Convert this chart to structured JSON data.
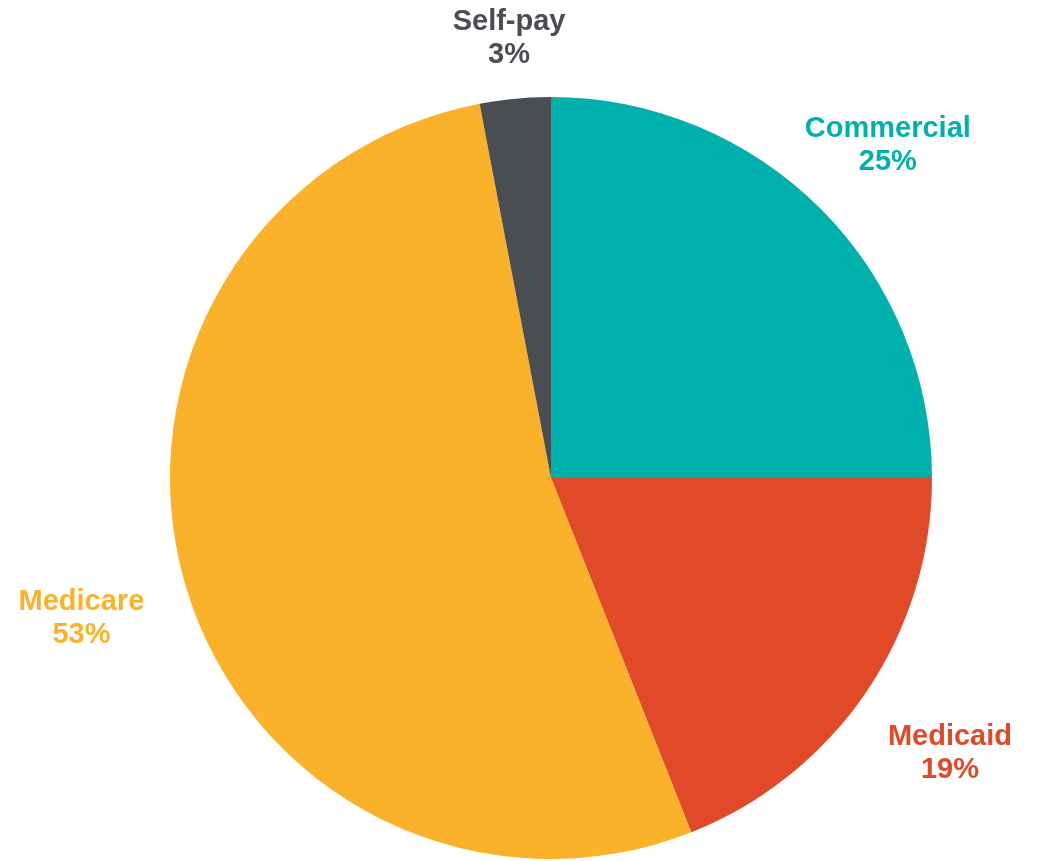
{
  "chart_data": {
    "type": "pie",
    "categories": [
      "Commercial",
      "Medicaid",
      "Medicare",
      "Self-pay"
    ],
    "values": [
      25,
      19,
      53,
      3
    ],
    "colors": [
      "#00b0ac",
      "#e04a28",
      "#f9b229",
      "#4a4d52"
    ],
    "value_labels": [
      "25%",
      "19%",
      "53%",
      "3%"
    ]
  }
}
